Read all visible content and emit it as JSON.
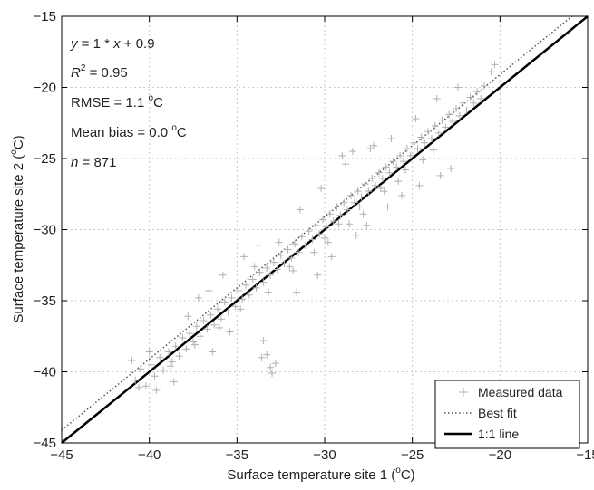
{
  "chart_data": {
    "type": "scatter",
    "xlabel": "Surface temperature site 1 (",
    "xlabel_unit": "C)",
    "ylabel": "Surface temperature site 2 (",
    "ylabel_unit": "C)",
    "degree_symbol": "o",
    "xlim": [
      -45,
      -15
    ],
    "ylim": [
      -45,
      -15
    ],
    "xticks": [
      -45,
      -40,
      -35,
      -30,
      -25,
      -20,
      -15
    ],
    "yticks": [
      -45,
      -40,
      -35,
      -30,
      -25,
      -20,
      -15
    ],
    "xtick_labels": [
      "−45",
      "−40",
      "−35",
      "−30",
      "−25",
      "−20",
      "−15"
    ],
    "ytick_labels": [
      "−45",
      "−40",
      "−35",
      "−30",
      "−25",
      "−20",
      "−15"
    ],
    "grid": true,
    "legend_position": "bottom-right",
    "annotations": {
      "equation": {
        "y": "y",
        "eq": " = 1 * ",
        "x": "x",
        "rest": " + 0.9"
      },
      "r2": {
        "r": "R",
        "sup": "2",
        "rest": " = 0.95"
      },
      "rmse": {
        "pre": "RMSE = 1.1 ",
        "sup": "o",
        "post": "C"
      },
      "bias": {
        "pre": "Mean bias = 0.0 ",
        "sup": "o",
        "post": "C"
      },
      "n": {
        "n": "n",
        "rest": " = 871"
      }
    },
    "series": [
      {
        "name": "Measured data",
        "marker": "+",
        "color": "#b0b0b0",
        "n": 871,
        "points": [
          [
            -40.8,
            -40.6
          ],
          [
            -40.5,
            -39.8
          ],
          [
            -40.2,
            -41.0
          ],
          [
            -39.9,
            -39.5
          ],
          [
            -39.7,
            -40.3
          ],
          [
            -39.4,
            -39.0
          ],
          [
            -39.2,
            -39.9
          ],
          [
            -38.9,
            -38.6
          ],
          [
            -38.7,
            -39.3
          ],
          [
            -38.5,
            -38.2
          ],
          [
            -38.3,
            -38.9
          ],
          [
            -38.1,
            -37.6
          ],
          [
            -37.9,
            -38.4
          ],
          [
            -37.7,
            -37.3
          ],
          [
            -37.5,
            -37.9
          ],
          [
            -37.3,
            -36.8
          ],
          [
            -37.1,
            -37.5
          ],
          [
            -36.9,
            -36.4
          ],
          [
            -36.7,
            -37.0
          ],
          [
            -36.5,
            -36.0
          ],
          [
            -36.3,
            -36.7
          ],
          [
            -36.1,
            -35.6
          ],
          [
            -35.9,
            -36.3
          ],
          [
            -35.7,
            -35.1
          ],
          [
            -35.5,
            -35.8
          ],
          [
            -35.3,
            -34.8
          ],
          [
            -35.1,
            -35.4
          ],
          [
            -34.9,
            -34.3
          ],
          [
            -34.7,
            -34.9
          ],
          [
            -34.5,
            -33.9
          ],
          [
            -34.3,
            -34.6
          ],
          [
            -34.1,
            -33.5
          ],
          [
            -33.9,
            -34.1
          ],
          [
            -33.7,
            -33.0
          ],
          [
            -33.5,
            -33.7
          ],
          [
            -33.3,
            -32.7
          ],
          [
            -33.1,
            -33.2
          ],
          [
            -32.9,
            -32.3
          ],
          [
            -32.7,
            -32.8
          ],
          [
            -32.5,
            -31.8
          ],
          [
            -32.3,
            -32.4
          ],
          [
            -32.1,
            -31.4
          ],
          [
            -31.9,
            -32.0
          ],
          [
            -31.7,
            -31.0
          ],
          [
            -31.5,
            -31.6
          ],
          [
            -31.3,
            -30.5
          ],
          [
            -31.1,
            -31.1
          ],
          [
            -30.9,
            -30.1
          ],
          [
            -30.7,
            -30.7
          ],
          [
            -30.5,
            -29.7
          ],
          [
            -30.3,
            -30.3
          ],
          [
            -30.1,
            -29.3
          ],
          [
            -29.9,
            -29.8
          ],
          [
            -29.7,
            -28.9
          ],
          [
            -29.5,
            -29.4
          ],
          [
            -29.3,
            -28.4
          ],
          [
            -29.1,
            -29.0
          ],
          [
            -28.9,
            -28.1
          ],
          [
            -28.7,
            -28.6
          ],
          [
            -28.5,
            -27.6
          ],
          [
            -28.3,
            -28.1
          ],
          [
            -28.1,
            -27.3
          ],
          [
            -27.9,
            -27.7
          ],
          [
            -27.7,
            -26.8
          ],
          [
            -27.5,
            -27.3
          ],
          [
            -27.3,
            -26.4
          ],
          [
            -27.1,
            -26.9
          ],
          [
            -26.9,
            -26.0
          ],
          [
            -26.7,
            -26.4
          ],
          [
            -26.5,
            -25.6
          ],
          [
            -26.3,
            -26.0
          ],
          [
            -26.1,
            -25.2
          ],
          [
            -25.9,
            -25.6
          ],
          [
            -25.7,
            -24.8
          ],
          [
            -25.5,
            -25.2
          ],
          [
            -25.3,
            -24.3
          ],
          [
            -25.1,
            -24.8
          ],
          [
            -24.9,
            -23.9
          ],
          [
            -24.7,
            -24.3
          ],
          [
            -24.5,
            -23.5
          ],
          [
            -24.3,
            -23.9
          ],
          [
            -24.1,
            -23.1
          ],
          [
            -23.9,
            -23.6
          ],
          [
            -23.7,
            -22.7
          ],
          [
            -23.5,
            -23.2
          ],
          [
            -23.3,
            -22.3
          ],
          [
            -23.1,
            -22.8
          ],
          [
            -22.9,
            -21.9
          ],
          [
            -22.7,
            -22.4
          ],
          [
            -22.5,
            -21.5
          ],
          [
            -22.3,
            -22.0
          ],
          [
            -22.1,
            -21.1
          ],
          [
            -21.9,
            -21.6
          ],
          [
            -21.7,
            -20.7
          ],
          [
            -21.5,
            -21.1
          ],
          [
            -21.3,
            -20.3
          ],
          [
            -21.1,
            -20.8
          ],
          [
            -20.9,
            -19.9
          ],
          [
            -20.5,
            -18.9
          ],
          [
            -20.3,
            -18.4
          ],
          [
            -33.5,
            -37.8
          ],
          [
            -33.3,
            -38.8
          ],
          [
            -33.1,
            -39.7
          ],
          [
            -33.0,
            -40.1
          ],
          [
            -32.8,
            -39.4
          ],
          [
            -33.6,
            -39.0
          ],
          [
            -37.2,
            -34.8
          ],
          [
            -36.6,
            -34.3
          ],
          [
            -35.8,
            -33.2
          ],
          [
            -34.6,
            -31.9
          ],
          [
            -33.8,
            -31.1
          ],
          [
            -31.4,
            -28.6
          ],
          [
            -30.2,
            -27.1
          ],
          [
            -28.8,
            -25.4
          ],
          [
            -27.4,
            -24.3
          ],
          [
            -26.2,
            -23.6
          ],
          [
            -24.8,
            -22.2
          ],
          [
            -23.6,
            -20.8
          ],
          [
            -22.4,
            -20.0
          ],
          [
            -29.0,
            -24.8
          ],
          [
            -28.4,
            -24.5
          ],
          [
            -27.2,
            -24.1
          ],
          [
            -31.6,
            -34.4
          ],
          [
            -30.4,
            -33.2
          ],
          [
            -29.6,
            -31.9
          ],
          [
            -28.2,
            -30.4
          ],
          [
            -27.6,
            -29.7
          ],
          [
            -26.4,
            -28.4
          ],
          [
            -25.6,
            -27.6
          ],
          [
            -24.6,
            -26.9
          ],
          [
            -23.4,
            -26.2
          ],
          [
            -22.8,
            -25.7
          ],
          [
            -35.4,
            -37.2
          ],
          [
            -36.4,
            -38.6
          ],
          [
            -38.6,
            -40.7
          ],
          [
            -39.6,
            -41.3
          ],
          [
            -40.6,
            -41.1
          ],
          [
            -41.0,
            -39.2
          ],
          [
            -40.0,
            -38.6
          ],
          [
            -37.8,
            -36.1
          ],
          [
            -34.0,
            -32.6
          ],
          [
            -32.6,
            -30.9
          ],
          [
            -33.2,
            -34.4
          ],
          [
            -31.8,
            -32.9
          ],
          [
            -30.6,
            -31.6
          ],
          [
            -29.8,
            -30.9
          ],
          [
            -28.6,
            -29.6
          ],
          [
            -27.8,
            -28.9
          ],
          [
            -26.6,
            -27.3
          ],
          [
            -25.8,
            -26.6
          ],
          [
            -24.4,
            -25.1
          ],
          [
            -23.8,
            -24.4
          ],
          [
            -34.8,
            -35.6
          ],
          [
            -36.0,
            -36.9
          ],
          [
            -37.4,
            -38.1
          ],
          [
            -38.8,
            -39.6
          ],
          [
            -32.0,
            -32.6
          ],
          [
            -30.0,
            -30.6
          ],
          [
            -29.2,
            -29.6
          ],
          [
            -28.0,
            -28.4
          ],
          [
            -26.8,
            -27.1
          ],
          [
            -25.4,
            -25.8
          ]
        ]
      },
      {
        "name": "Best fit",
        "slope": 1,
        "intercept": 0.9,
        "style": "dotted",
        "color": "#555555"
      },
      {
        "name": "1:1 line",
        "slope": 1,
        "intercept": 0,
        "style": "solid",
        "color": "#000000"
      }
    ]
  }
}
